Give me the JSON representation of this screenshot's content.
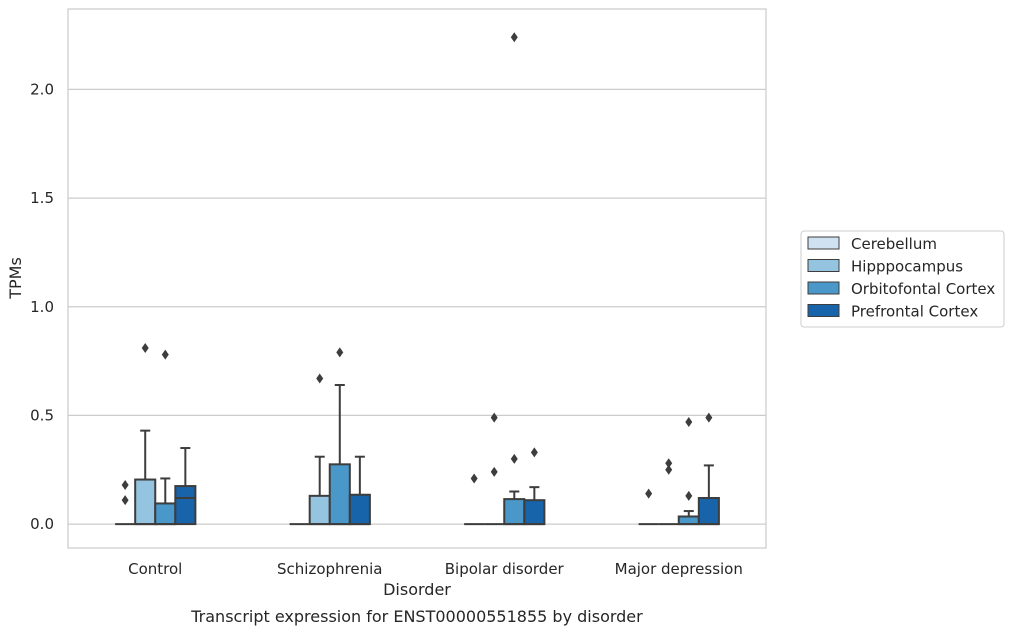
{
  "chart_data": {
    "type": "box",
    "title": "Transcript expression for ENST00000551855 by disorder",
    "xlabel": "Disorder",
    "ylabel": "TPMs",
    "categories": [
      "Control",
      "Schizophrenia",
      "Bipolar disorder",
      "Major depression"
    ],
    "ylim": [
      -0.11,
      2.37
    ],
    "yticks": [
      0.0,
      0.5,
      1.0,
      1.5,
      2.0
    ],
    "ytick_labels": [
      "0.0",
      "0.5",
      "1.0",
      "1.5",
      "2.0"
    ],
    "grid": true,
    "legend_position": "right",
    "series": [
      {
        "name": "Cerebellum",
        "color": "#d0e1f2",
        "boxes": [
          {
            "q1": 0,
            "median": 0,
            "q3": 0,
            "whislo": 0,
            "whishi": 0,
            "fliers": [
              0.11,
              0.18
            ]
          },
          {
            "q1": 0,
            "median": 0,
            "q3": 0,
            "whislo": 0,
            "whishi": 0,
            "fliers": []
          },
          {
            "q1": 0,
            "median": 0,
            "q3": 0,
            "whislo": 0,
            "whishi": 0,
            "fliers": [
              0.21
            ]
          },
          {
            "q1": 0,
            "median": 0,
            "q3": 0,
            "whislo": 0,
            "whishi": 0,
            "fliers": [
              0.14
            ]
          }
        ]
      },
      {
        "name": "Hipppocampus",
        "color": "#94c4df",
        "boxes": [
          {
            "q1": 0,
            "median": 0,
            "q3": 0.205,
            "whislo": 0,
            "whishi": 0.43,
            "fliers": [
              0.81
            ]
          },
          {
            "q1": 0,
            "median": 0,
            "q3": 0.13,
            "whislo": 0,
            "whishi": 0.31,
            "fliers": [
              0.67
            ]
          },
          {
            "q1": 0,
            "median": 0,
            "q3": 0,
            "whislo": 0,
            "whishi": 0,
            "fliers": [
              0.24,
              0.49
            ]
          },
          {
            "q1": 0,
            "median": 0,
            "q3": 0,
            "whislo": 0,
            "whishi": 0,
            "fliers": [
              0.25,
              0.28
            ]
          }
        ]
      },
      {
        "name": "Orbitofontal Cortex",
        "color": "#4a98c9",
        "boxes": [
          {
            "q1": 0,
            "median": 0,
            "q3": 0.095,
            "whislo": 0,
            "whishi": 0.21,
            "fliers": [
              0.78
            ]
          },
          {
            "q1": 0,
            "median": 0,
            "q3": 0.275,
            "whislo": 0,
            "whishi": 0.64,
            "fliers": [
              0.79
            ]
          },
          {
            "q1": 0,
            "median": 0,
            "q3": 0.115,
            "whislo": 0,
            "whishi": 0.15,
            "fliers": [
              0.3,
              2.24
            ]
          },
          {
            "q1": 0,
            "median": 0,
            "q3": 0.035,
            "whislo": 0,
            "whishi": 0.06,
            "fliers": [
              0.13,
              0.47
            ]
          }
        ]
      },
      {
        "name": "Prefrontal Cortex",
        "color": "#1764ab",
        "boxes": [
          {
            "q1": 0,
            "median": 0.12,
            "q3": 0.175,
            "whislo": 0,
            "whishi": 0.35,
            "fliers": []
          },
          {
            "q1": 0,
            "median": 0,
            "q3": 0.135,
            "whislo": 0,
            "whishi": 0.31,
            "fliers": []
          },
          {
            "q1": 0,
            "median": 0,
            "q3": 0.11,
            "whislo": 0,
            "whishi": 0.17,
            "fliers": [
              0.33
            ]
          },
          {
            "q1": 0,
            "median": 0,
            "q3": 0.12,
            "whislo": 0,
            "whishi": 0.27,
            "fliers": [
              0.49
            ]
          }
        ]
      }
    ]
  }
}
